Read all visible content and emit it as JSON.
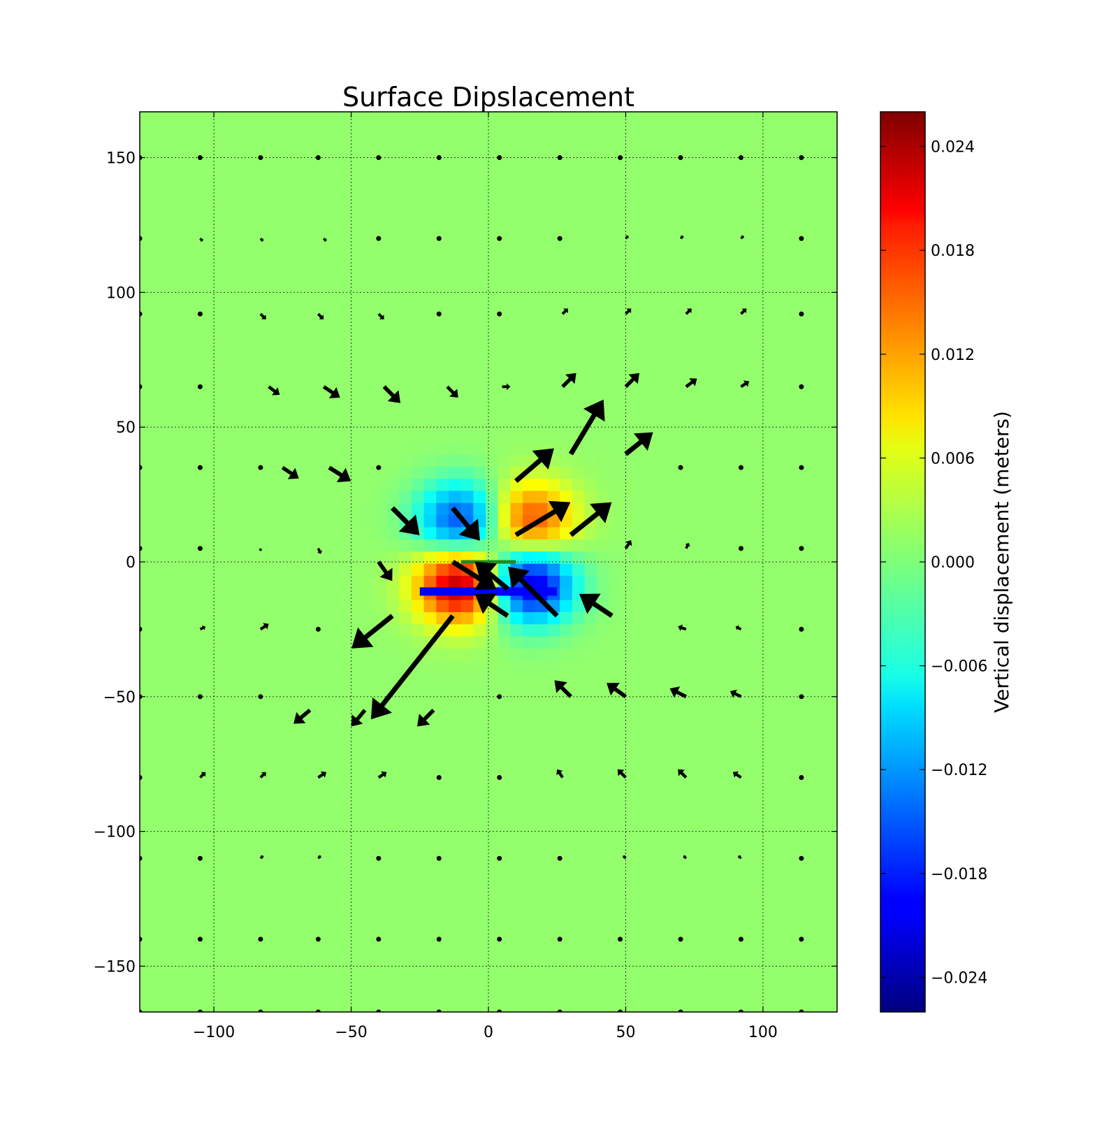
{
  "chart_data": {
    "type": "heatmap",
    "title": "Surface Dipslacement",
    "xlabel": "",
    "ylabel": "",
    "xlim": [
      -127,
      127
    ],
    "ylim": [
      -167,
      167
    ],
    "grid": true,
    "x_ticks": [
      {
        "value": -100,
        "label": "−100"
      },
      {
        "value": -50,
        "label": "−50"
      },
      {
        "value": 0,
        "label": "0"
      },
      {
        "value": 50,
        "label": "50"
      },
      {
        "value": 100,
        "label": "100"
      }
    ],
    "y_ticks": [
      {
        "value": 150,
        "label": "150"
      },
      {
        "value": 100,
        "label": "100"
      },
      {
        "value": 50,
        "label": "50"
      },
      {
        "value": 0,
        "label": "0"
      },
      {
        "value": -50,
        "label": "−50"
      },
      {
        "value": -100,
        "label": "−100"
      },
      {
        "value": -150,
        "label": "−150"
      }
    ],
    "colorbar": {
      "label": "Vertical displacement (meters)",
      "range": [
        -0.026,
        0.026
      ],
      "colormap": "jet",
      "ticks": [
        {
          "value": 0.024,
          "label": "0.024"
        },
        {
          "value": 0.018,
          "label": "0.018"
        },
        {
          "value": 0.012,
          "label": "0.012"
        },
        {
          "value": 0.006,
          "label": "0.006"
        },
        {
          "value": 0.0,
          "label": "0.000"
        },
        {
          "value": -0.006,
          "label": "−0.006"
        },
        {
          "value": -0.012,
          "label": "−0.012"
        },
        {
          "value": -0.018,
          "label": "−0.018"
        },
        {
          "value": -0.024,
          "label": "−0.024"
        }
      ]
    },
    "field": {
      "background": 0.001,
      "lobes": [
        {
          "x": -10,
          "y": 15,
          "amp": -0.018,
          "sx": 11,
          "sy": 10
        },
        {
          "x": 15,
          "y": 15,
          "amp": 0.016,
          "sx": 11,
          "sy": 10
        },
        {
          "x": -10,
          "y": -8,
          "amp": 0.024,
          "sx": 11,
          "sy": 10
        },
        {
          "x": 15,
          "y": -8,
          "amp": -0.024,
          "sx": 11,
          "sy": 10
        }
      ]
    },
    "fault_lines": [
      {
        "name": "surface-trace",
        "x1": -10,
        "y1": 0,
        "x2": 10,
        "y2": 0,
        "color": "#228B22"
      },
      {
        "name": "buried-fault",
        "x1": -25,
        "y1": -11,
        "x2": 25,
        "y2": -11,
        "color": "#0000ff"
      }
    ],
    "vectors": [
      {
        "x": -35,
        "y": 20,
        "u": 10,
        "v": -10
      },
      {
        "x": -13,
        "y": 20,
        "u": 10,
        "v": -12
      },
      {
        "x": 10,
        "y": 30,
        "u": 14,
        "v": 12
      },
      {
        "x": 30,
        "y": 40,
        "u": 12,
        "v": 20
      },
      {
        "x": 50,
        "y": 40,
        "u": 10,
        "v": 8
      },
      {
        "x": 10,
        "y": 10,
        "u": 20,
        "v": 12
      },
      {
        "x": 30,
        "y": 10,
        "u": 15,
        "v": 12
      },
      {
        "x": -13,
        "y": 0,
        "u": 16,
        "v": -10
      },
      {
        "x": 7,
        "y": -10,
        "u": -12,
        "v": 10
      },
      {
        "x": 25,
        "y": -20,
        "u": -18,
        "v": 18
      },
      {
        "x": 45,
        "y": -20,
        "u": -12,
        "v": 8
      },
      {
        "x": -13,
        "y": -20,
        "u": -30,
        "v": -38
      },
      {
        "x": -35,
        "y": -20,
        "u": -15,
        "v": -12
      },
      {
        "x": 7,
        "y": -20,
        "u": -12,
        "v": 8
      },
      {
        "x": -40,
        "y": 0,
        "u": 5,
        "v": -7
      },
      {
        "x": -75,
        "y": 35,
        "u": 6,
        "v": -4
      },
      {
        "x": -58,
        "y": 35,
        "u": 8,
        "v": -5
      },
      {
        "x": -80,
        "y": 65,
        "u": 4,
        "v": -3
      },
      {
        "x": -60,
        "y": 65,
        "u": 6,
        "v": -4
      },
      {
        "x": -38,
        "y": 65,
        "u": 6,
        "v": -6
      },
      {
        "x": -15,
        "y": 65,
        "u": 4,
        "v": -4
      },
      {
        "x": 5,
        "y": 65,
        "u": 3,
        "v": 0
      },
      {
        "x": 27,
        "y": 65,
        "u": 5,
        "v": 5
      },
      {
        "x": 50,
        "y": 65,
        "u": 5,
        "v": 5
      },
      {
        "x": 72,
        "y": 65,
        "u": 4,
        "v": 3
      },
      {
        "x": 92,
        "y": 65,
        "u": 3,
        "v": 2
      },
      {
        "x": 30,
        "y": -50,
        "u": -6,
        "v": 6
      },
      {
        "x": 50,
        "y": -50,
        "u": -7,
        "v": 5
      },
      {
        "x": 72,
        "y": -50,
        "u": -6,
        "v": 3
      },
      {
        "x": 92,
        "y": -50,
        "u": -4,
        "v": 2
      },
      {
        "x": -65,
        "y": -55,
        "u": -6,
        "v": -5
      },
      {
        "x": -45,
        "y": -55,
        "u": -5,
        "v": -6
      },
      {
        "x": -20,
        "y": -55,
        "u": -6,
        "v": -6
      },
      {
        "x": -105,
        "y": 120,
        "u": 1,
        "v": -1
      },
      {
        "x": -83,
        "y": 120,
        "u": 1,
        "v": -1
      },
      {
        "x": -60,
        "y": 120,
        "u": 1,
        "v": -1
      },
      {
        "x": 50,
        "y": 120,
        "u": 1,
        "v": 1
      },
      {
        "x": 70,
        "y": 120,
        "u": 1,
        "v": 1
      },
      {
        "x": 92,
        "y": 120,
        "u": 1,
        "v": 1
      },
      {
        "x": -83,
        "y": 92,
        "u": 2,
        "v": -2
      },
      {
        "x": -62,
        "y": 92,
        "u": 2,
        "v": -2
      },
      {
        "x": -40,
        "y": 92,
        "u": 2,
        "v": -2
      },
      {
        "x": 27,
        "y": 92,
        "u": 2,
        "v": 2
      },
      {
        "x": 50,
        "y": 92,
        "u": 2,
        "v": 2
      },
      {
        "x": 72,
        "y": 92,
        "u": 2,
        "v": 2
      },
      {
        "x": 92,
        "y": 92,
        "u": 2,
        "v": 2
      },
      {
        "x": -105,
        "y": -80,
        "u": 2,
        "v": 2
      },
      {
        "x": -83,
        "y": -80,
        "u": 2,
        "v": 2
      },
      {
        "x": -62,
        "y": -80,
        "u": 3,
        "v": 2
      },
      {
        "x": -40,
        "y": -80,
        "u": 3,
        "v": 2
      },
      {
        "x": 27,
        "y": -80,
        "u": -2,
        "v": 3
      },
      {
        "x": 50,
        "y": -80,
        "u": -3,
        "v": 3
      },
      {
        "x": 72,
        "y": -80,
        "u": -3,
        "v": 3
      },
      {
        "x": 92,
        "y": -80,
        "u": -3,
        "v": 2
      },
      {
        "x": -83,
        "y": -110,
        "u": 1,
        "v": 1
      },
      {
        "x": -62,
        "y": -110,
        "u": 1,
        "v": 1
      },
      {
        "x": 50,
        "y": -110,
        "u": -1,
        "v": 1
      },
      {
        "x": 72,
        "y": -110,
        "u": -1,
        "v": 1
      },
      {
        "x": 92,
        "y": -110,
        "u": -1,
        "v": 1
      },
      {
        "x": -105,
        "y": -25,
        "u": 2,
        "v": 1
      },
      {
        "x": -83,
        "y": -25,
        "u": 3,
        "v": 2
      },
      {
        "x": 72,
        "y": -25,
        "u": -3,
        "v": 1
      },
      {
        "x": 92,
        "y": -25,
        "u": -2,
        "v": 1
      },
      {
        "x": 50,
        "y": 5,
        "u": 2,
        "v": 3
      },
      {
        "x": 72,
        "y": 5,
        "u": 1,
        "v": 2
      },
      {
        "x": -62,
        "y": 5,
        "u": 1,
        "v": -2
      },
      {
        "x": -83,
        "y": 5,
        "u": 0,
        "v": -1
      }
    ]
  }
}
